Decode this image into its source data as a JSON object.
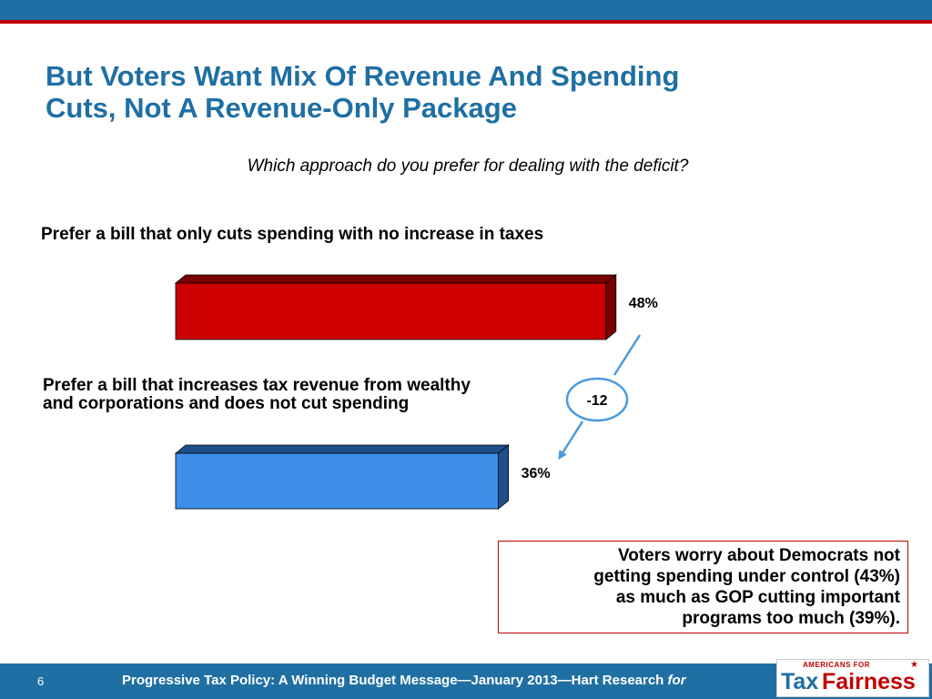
{
  "slide": {
    "title_line1": "But Voters Want Mix Of Revenue And Spending",
    "title_line2": "Cuts, Not A Revenue-Only Package",
    "question": "Which approach do you prefer for dealing with the deficit?",
    "difference_label": "-12",
    "note_line1": "Voters worry about Democrats not",
    "note_line2": "getting spending under control (43%)",
    "note_line3": "as much as GOP cutting important",
    "note_line4": "programs too much (39%).",
    "page_number": "6",
    "footer_text": "Progressive Tax Policy:   A Winning Budget Message—January 2013—Hart Research ",
    "footer_for": "for",
    "logo": {
      "top_text": "AMERICANS FOR",
      "tax": "Tax",
      "fairness": "Fairness"
    }
  },
  "chart_data": {
    "type": "bar",
    "orientation": "horizontal",
    "categories": [
      "Prefer a bill that only cuts spending with no increase in taxes",
      "Prefer a bill that increases tax revenue from wealthy and corporations and does not cut spending"
    ],
    "category_lines": [
      [
        "Prefer a bill that only cuts spending with no increase in taxes"
      ],
      [
        "Prefer a bill that increases tax revenue from wealthy",
        "and corporations and does not cut spending"
      ]
    ],
    "values": [
      48,
      36
    ],
    "value_labels": [
      "48%",
      "36%"
    ],
    "colors": [
      "#cc0000",
      "#3d8fe8"
    ],
    "side_colors": [
      "#7a0000",
      "#1f4f8a"
    ],
    "grid": false,
    "legend": "none"
  }
}
